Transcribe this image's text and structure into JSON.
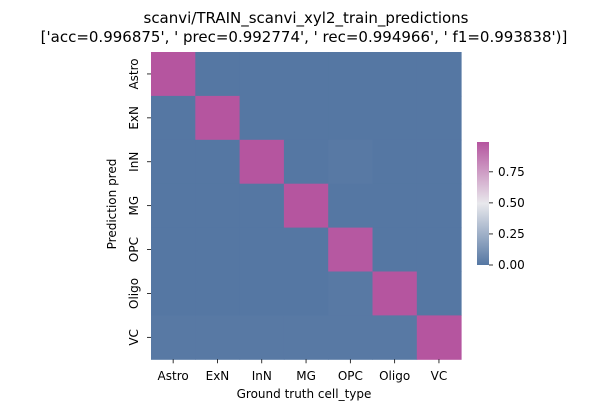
{
  "chart_data": {
    "type": "heatmap",
    "title": "scanvi/TRAIN_scanvi_xyl2_train_predictions",
    "subtitle": "['acc=0.996875', '  prec=0.992774', ' rec=0.994966', ' f1=0.993838')]",
    "xlabel": "Ground truth cell_type",
    "ylabel": "Prediction pred",
    "x_categories": [
      "Astro",
      "ExN",
      "InN",
      "MG",
      "OPC",
      "Oligo",
      "VC"
    ],
    "y_categories": [
      "Astro",
      "ExN",
      "InN",
      "MG",
      "OPC",
      "Oligo",
      "VC"
    ],
    "values": [
      [
        0.99,
        0.0,
        0.0,
        0.0,
        0.0,
        0.0,
        0.0
      ],
      [
        0.0,
        0.99,
        0.0,
        0.0,
        0.0,
        0.0,
        0.0
      ],
      [
        0.0,
        0.0,
        0.99,
        0.0,
        0.01,
        0.0,
        0.0
      ],
      [
        0.0,
        0.0,
        0.0,
        0.99,
        0.0,
        0.0,
        0.0
      ],
      [
        0.0,
        0.0,
        0.0,
        0.0,
        0.98,
        0.0,
        0.0
      ],
      [
        0.0,
        0.0,
        0.0,
        0.0,
        0.01,
        0.99,
        0.0
      ],
      [
        0.01,
        0.01,
        0.01,
        0.01,
        0.01,
        0.01,
        0.99
      ]
    ],
    "colorbar": {
      "ticks": [
        0.0,
        0.25,
        0.5,
        0.75
      ],
      "tick_labels": [
        "0.00",
        "0.25",
        "0.50",
        "0.75"
      ],
      "range": [
        0,
        0.99
      ]
    },
    "colormap": [
      "#5577a3",
      "#e8e8ec",
      "#b5559f"
    ]
  }
}
